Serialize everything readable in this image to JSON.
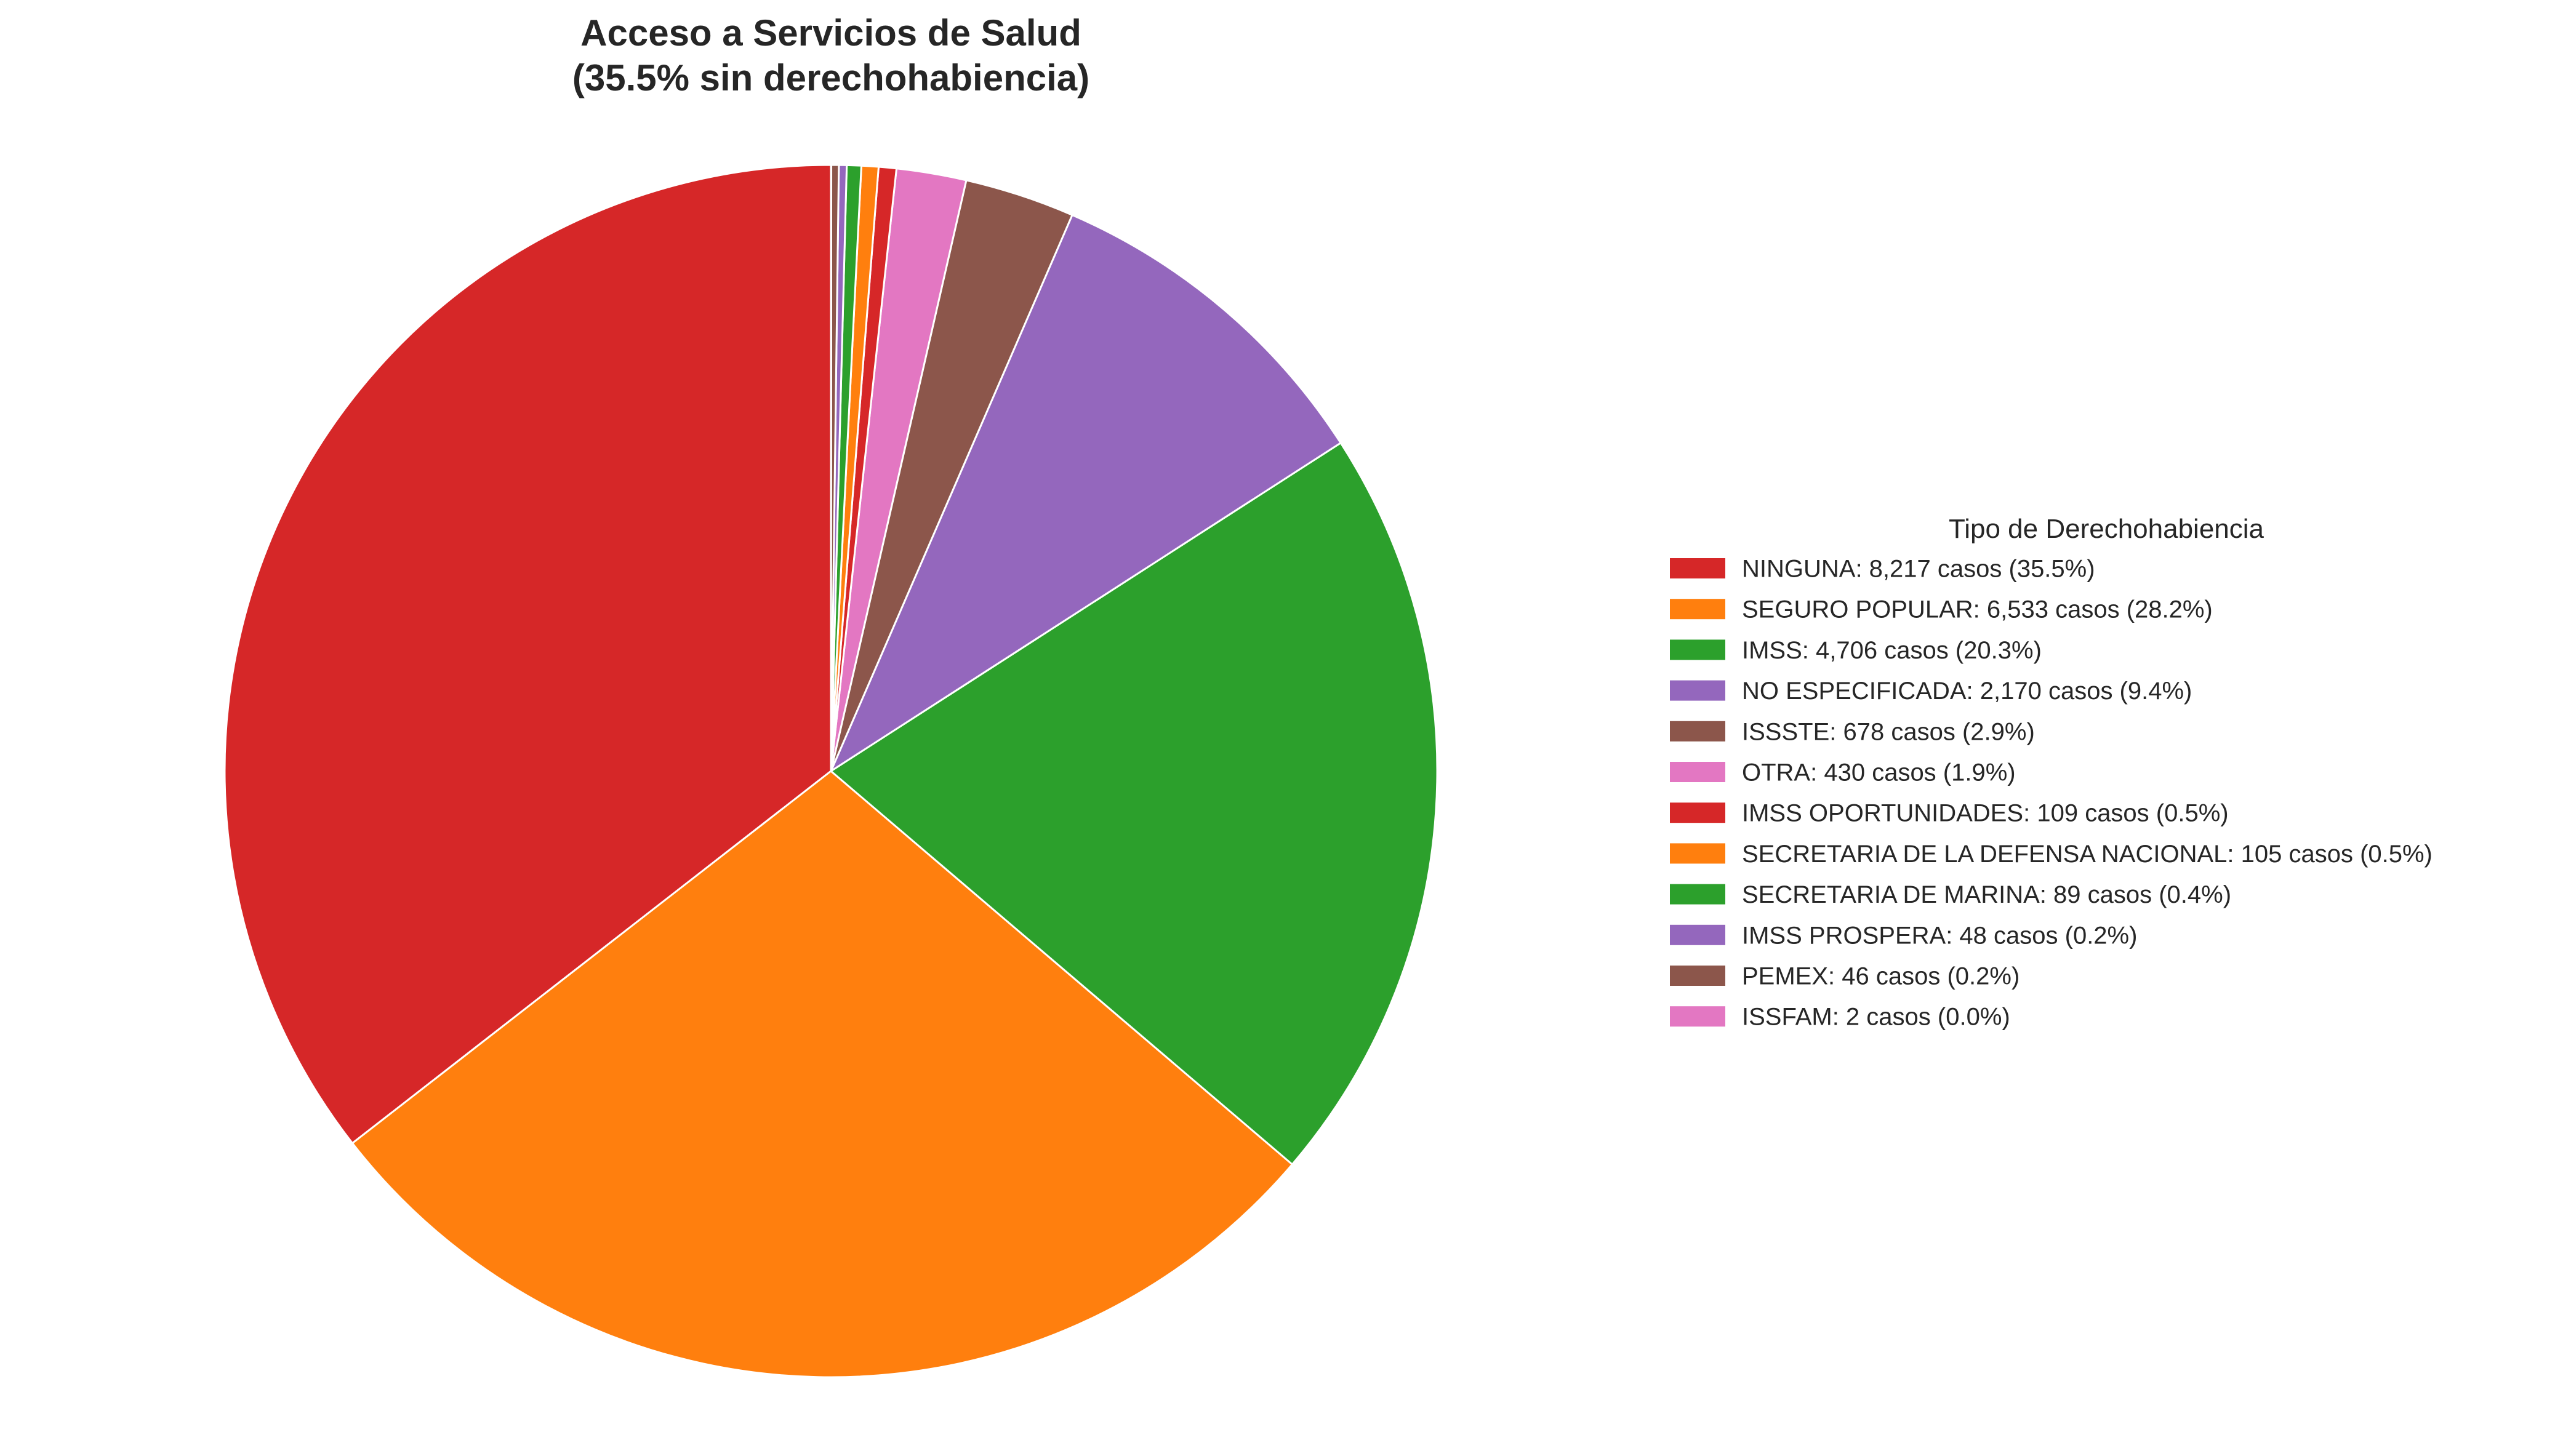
{
  "chart_data": {
    "type": "pie",
    "title": "Acceso a Servicios de Salud",
    "subtitle": "(35.5% sin derechohabiencia)",
    "legend_title": "Tipo de Derechohabiencia",
    "legend_position": "right",
    "start_angle": "top, counterclockwise",
    "slices": [
      {
        "label": "NINGUNA",
        "value": 8217,
        "percent": 35.5,
        "color": "#d62728",
        "legend": "NINGUNA: 8,217 casos (35.5%)"
      },
      {
        "label": "SEGURO POPULAR",
        "value": 6533,
        "percent": 28.2,
        "color": "#ff7f0e",
        "legend": "SEGURO POPULAR: 6,533 casos (28.2%)"
      },
      {
        "label": "IMSS",
        "value": 4706,
        "percent": 20.3,
        "color": "#2ca02c",
        "legend": "IMSS: 4,706 casos (20.3%)"
      },
      {
        "label": "NO ESPECIFICADA",
        "value": 2170,
        "percent": 9.4,
        "color": "#9467bd",
        "legend": "NO ESPECIFICADA: 2,170 casos (9.4%)"
      },
      {
        "label": "ISSSTE",
        "value": 678,
        "percent": 2.9,
        "color": "#8c564b",
        "legend": "ISSSTE: 678 casos (2.9%)"
      },
      {
        "label": "OTRA",
        "value": 430,
        "percent": 1.9,
        "color": "#e377c2",
        "legend": "OTRA: 430 casos (1.9%)"
      },
      {
        "label": "IMSS OPORTUNIDADES",
        "value": 109,
        "percent": 0.5,
        "color": "#d62728",
        "legend": "IMSS OPORTUNIDADES: 109 casos (0.5%)"
      },
      {
        "label": "SECRETARIA DE LA DEFENSA NACIONAL",
        "value": 105,
        "percent": 0.5,
        "color": "#ff7f0e",
        "legend": "SECRETARIA DE LA DEFENSA NACIONAL: 105 casos (0.5%)"
      },
      {
        "label": "SECRETARIA DE MARINA",
        "value": 89,
        "percent": 0.4,
        "color": "#2ca02c",
        "legend": "SECRETARIA DE MARINA: 89 casos (0.4%)"
      },
      {
        "label": "IMSS PROSPERA",
        "value": 48,
        "percent": 0.2,
        "color": "#9467bd",
        "legend": "IMSS PROSPERA: 48 casos (0.2%)"
      },
      {
        "label": "PEMEX",
        "value": 46,
        "percent": 0.2,
        "color": "#8c564b",
        "legend": "PEMEX: 46 casos (0.2%)"
      },
      {
        "label": "ISSFAM",
        "value": 2,
        "percent": 0.0,
        "color": "#e377c2",
        "legend": "ISSFAM: 2 casos (0.0%)"
      }
    ]
  }
}
